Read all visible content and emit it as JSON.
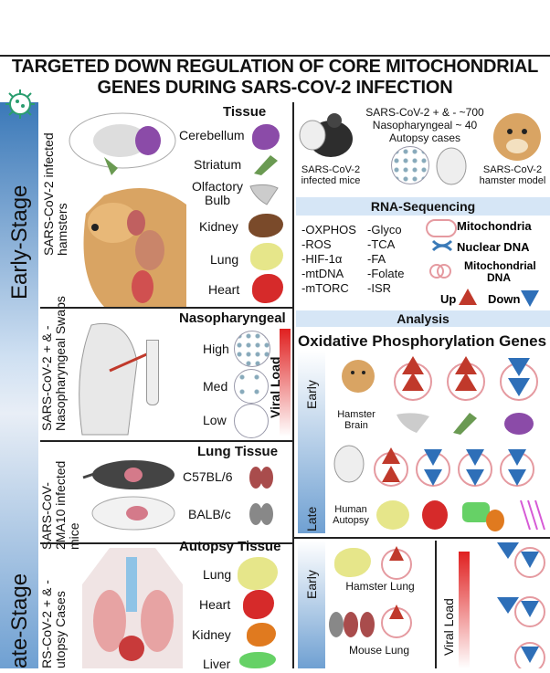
{
  "title": "TARGETED DOWN REGULATION OF CORE MITOCHONDRIAL GENES DURING SARS-COV-2 INFECTION",
  "left": {
    "early_stage": "Early-Stage",
    "late_stage": "ate-Stage",
    "hamsters_label": "SARS-CoV-2 infected hamsters",
    "swabs_label": "SARS-CoV-2 + & - Nasopharyngeal Swabs",
    "mice_label": "SARS-CoV-2MA10 infected mice",
    "autopsy_label": "RS-CoV-2 + & - utopsy Cases",
    "tissue_header": "Tissue",
    "tissues": [
      "Cerebellum",
      "Striatum",
      "Olfactory Bulb",
      "Kidney",
      "Lung",
      "Heart"
    ],
    "naso_header": "Nasopharyngeal",
    "loads": [
      "High",
      "Med",
      "Low"
    ],
    "viral_load": "Viral Load",
    "lung_tissue_header": "Lung Tissue",
    "mouse_strains": [
      "C57BL/6",
      "BALB/c"
    ],
    "autopsy_header": "Autopsy Tissue",
    "autopsy_tissues": [
      "Lung",
      "Heart",
      "Kidney",
      "Liver"
    ]
  },
  "right": {
    "mice_caption": "SARS-CoV-2 infected mice",
    "center_caption": "SARS-CoV-2 + & - ~700 Nasopharyngeal ~ 40 Autopsy cases",
    "hamster_caption": "SARS-CoV-2 hamster model",
    "rnaseq_header": "RNA-Sequencing",
    "pathways_left": [
      "-OXPHOS",
      "-ROS",
      "-HIF-1α",
      "-mtDNA",
      "-mTORC"
    ],
    "pathways_right": [
      "-Glyco",
      "-TCA",
      "-FA",
      "-Folate",
      "-ISR"
    ],
    "legend": [
      "Mitochondria",
      "Nuclear DNA",
      "Mitochondrial DNA"
    ],
    "up_label": "Up",
    "down_label": "Down",
    "analysis_header": "Analysis",
    "oxphos_header": "Oxidative Phosphorylation Genes",
    "early": "Early",
    "late": "Late",
    "hamster_brain": "Hamster Brain",
    "human_autopsy": "Human Autopsy",
    "hamster_lung": "Hamster Lung",
    "mouse_lung": "Mouse Lung",
    "viral_load": "Viral Load"
  }
}
